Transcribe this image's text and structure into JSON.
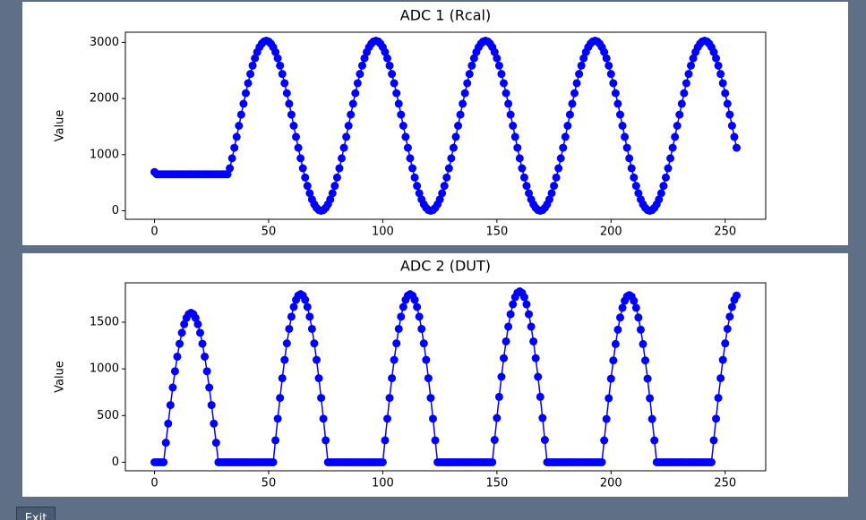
{
  "chart_data": [
    {
      "type": "line",
      "title": "ADC 1 (Rcal)",
      "ylabel": "Value",
      "color": "blue",
      "x": [
        0,
        1,
        2,
        3,
        4,
        5,
        6,
        7,
        8,
        9,
        10,
        11,
        12,
        13,
        14,
        15,
        16,
        17,
        18,
        19,
        20,
        21,
        22,
        23,
        24,
        25,
        26,
        27,
        28,
        29,
        30,
        31,
        32,
        33,
        34,
        35,
        36,
        37,
        38,
        39,
        40,
        41,
        42,
        43,
        44,
        45,
        46,
        47,
        48,
        49,
        50,
        51,
        52,
        53,
        54,
        55,
        56,
        57,
        58,
        59,
        60,
        61,
        62,
        63,
        64,
        65,
        66,
        67,
        68,
        69,
        70,
        71,
        72,
        73,
        74,
        75,
        76,
        77,
        78,
        79,
        80,
        81,
        82,
        83,
        84,
        85,
        86,
        87,
        88,
        89,
        90,
        91,
        92,
        93,
        94,
        95,
        96,
        97,
        98,
        99,
        100,
        101,
        102,
        103,
        104,
        105,
        106,
        107,
        108,
        109,
        110,
        111,
        112,
        113,
        114,
        115,
        116,
        117,
        118,
        119,
        120,
        121,
        122,
        123,
        124,
        125,
        126,
        127,
        128,
        129,
        130,
        131,
        132,
        133,
        134,
        135,
        136,
        137,
        138,
        139,
        140,
        141,
        142,
        143,
        144,
        145,
        146,
        147,
        148,
        149,
        150,
        151,
        152,
        153,
        154,
        155,
        156,
        157,
        158,
        159,
        160,
        161,
        162,
        163,
        164,
        165,
        166,
        167,
        168,
        169,
        170,
        171,
        172,
        173,
        174,
        175,
        176,
        177,
        178,
        179,
        180,
        181,
        182,
        183,
        184,
        185,
        186,
        187,
        188,
        189,
        190,
        191,
        192,
        193,
        194,
        195,
        196,
        197,
        198,
        199,
        200,
        201,
        202,
        203,
        204,
        205,
        206,
        207,
        208,
        209,
        210,
        211,
        212,
        213,
        214,
        215,
        216,
        217,
        218,
        219,
        220,
        221,
        222,
        223,
        224,
        225,
        226,
        227,
        228,
        229,
        230,
        231,
        232,
        233,
        234,
        235,
        236,
        237,
        238,
        239,
        240,
        241,
        242,
        243,
        244,
        245,
        246,
        247,
        248,
        249,
        250,
        251,
        252,
        253,
        254,
        255
      ],
      "values": [
        690,
        650,
        650,
        650,
        650,
        650,
        650,
        650,
        650,
        650,
        650,
        650,
        650,
        650,
        650,
        650,
        650,
        650,
        650,
        650,
        650,
        650,
        650,
        650,
        650,
        650,
        650,
        650,
        650,
        650,
        650,
        650,
        650,
        757,
        935,
        1123,
        1317,
        1515,
        1713,
        1907,
        2095,
        2273,
        2437,
        2586,
        2717,
        2827,
        2915,
        2978,
        3017,
        3030,
        3017,
        2978,
        2915,
        2827,
        2717,
        2586,
        2437,
        2273,
        2095,
        1907,
        1713,
        1515,
        1317,
        1123,
        935,
        757,
        593,
        444,
        313,
        203,
        115,
        52,
        13,
        0,
        13,
        52,
        115,
        203,
        313,
        444,
        593,
        757,
        935,
        1123,
        1317,
        1515,
        1713,
        1907,
        2095,
        2273,
        2437,
        2586,
        2717,
        2827,
        2915,
        2978,
        3017,
        3030,
        3017,
        2978,
        2915,
        2827,
        2717,
        2586,
        2437,
        2273,
        2095,
        1907,
        1713,
        1515,
        1317,
        1123,
        935,
        757,
        593,
        444,
        313,
        203,
        115,
        52,
        13,
        0,
        13,
        52,
        115,
        203,
        313,
        444,
        593,
        757,
        935,
        1123,
        1317,
        1515,
        1713,
        1907,
        2095,
        2273,
        2437,
        2586,
        2717,
        2827,
        2915,
        2978,
        3017,
        3030,
        3017,
        2978,
        2915,
        2827,
        2717,
        2586,
        2437,
        2273,
        2095,
        1907,
        1713,
        1515,
        1317,
        1123,
        935,
        757,
        593,
        444,
        313,
        203,
        115,
        52,
        13,
        0,
        13,
        52,
        115,
        203,
        313,
        444,
        593,
        757,
        935,
        1123,
        1317,
        1515,
        1713,
        1907,
        2095,
        2273,
        2437,
        2586,
        2717,
        2827,
        2915,
        2978,
        3017,
        3030,
        3017,
        2978,
        2915,
        2827,
        2717,
        2586,
        2437,
        2273,
        2095,
        1907,
        1713,
        1515,
        1317,
        1123,
        935,
        757,
        593,
        444,
        313,
        203,
        115,
        52,
        13,
        0,
        13,
        52,
        115,
        203,
        313,
        444,
        593,
        757,
        935,
        1123,
        1317,
        1515,
        1713,
        1907,
        2095,
        2273,
        2437,
        2586,
        2717,
        2827,
        2915,
        2978,
        3017,
        3030,
        3017,
        2978,
        2915,
        2827,
        2717,
        2586,
        2437,
        2273,
        2095,
        1907,
        1713,
        1515,
        1317,
        1123
      ],
      "xlim": [
        -12.75,
        267.75
      ],
      "xticks": [
        0,
        50,
        100,
        150,
        200,
        250
      ],
      "ylim": [
        -151.5,
        3181.5
      ],
      "yticks": [
        0,
        1000,
        2000,
        3000
      ]
    },
    {
      "type": "line",
      "title": "ADC 2 (DUT)",
      "ylabel": "Value",
      "color": "blue",
      "x": [
        0,
        1,
        2,
        3,
        4,
        5,
        6,
        7,
        8,
        9,
        10,
        11,
        12,
        13,
        14,
        15,
        16,
        17,
        18,
        19,
        20,
        21,
        22,
        23,
        24,
        25,
        26,
        27,
        28,
        29,
        30,
        31,
        32,
        33,
        34,
        35,
        36,
        37,
        38,
        39,
        40,
        41,
        42,
        43,
        44,
        45,
        46,
        47,
        48,
        49,
        50,
        51,
        52,
        53,
        54,
        55,
        56,
        57,
        58,
        59,
        60,
        61,
        62,
        63,
        64,
        65,
        66,
        67,
        68,
        69,
        70,
        71,
        72,
        73,
        74,
        75,
        76,
        77,
        78,
        79,
        80,
        81,
        82,
        83,
        84,
        85,
        86,
        87,
        88,
        89,
        90,
        91,
        92,
        93,
        94,
        95,
        96,
        97,
        98,
        99,
        100,
        101,
        102,
        103,
        104,
        105,
        106,
        107,
        108,
        109,
        110,
        111,
        112,
        113,
        114,
        115,
        116,
        117,
        118,
        119,
        120,
        121,
        122,
        123,
        124,
        125,
        126,
        127,
        128,
        129,
        130,
        131,
        132,
        133,
        134,
        135,
        136,
        137,
        138,
        139,
        140,
        141,
        142,
        143,
        144,
        145,
        146,
        147,
        148,
        149,
        150,
        151,
        152,
        153,
        154,
        155,
        156,
        157,
        158,
        159,
        160,
        161,
        162,
        163,
        164,
        165,
        166,
        167,
        168,
        169,
        170,
        171,
        172,
        173,
        174,
        175,
        176,
        177,
        178,
        179,
        180,
        181,
        182,
        183,
        184,
        185,
        186,
        187,
        188,
        189,
        190,
        191,
        192,
        193,
        194,
        195,
        196,
        197,
        198,
        199,
        200,
        201,
        202,
        203,
        204,
        205,
        206,
        207,
        208,
        209,
        210,
        211,
        212,
        213,
        214,
        215,
        216,
        217,
        218,
        219,
        220,
        221,
        222,
        223,
        224,
        225,
        226,
        227,
        228,
        229,
        230,
        231,
        232,
        233,
        234,
        235,
        236,
        237,
        238,
        239,
        240,
        241,
        242,
        243,
        244,
        245,
        246,
        247,
        248,
        249,
        250,
        251,
        252,
        253,
        254,
        255
      ],
      "values": [
        0,
        0,
        0,
        0,
        0,
        209,
        414,
        612,
        800,
        974,
        1131,
        1269,
        1386,
        1478,
        1545,
        1586,
        1600,
        1586,
        1545,
        1478,
        1386,
        1269,
        1131,
        974,
        800,
        612,
        414,
        209,
        0,
        0,
        0,
        0,
        0,
        0,
        0,
        0,
        0,
        0,
        0,
        0,
        0,
        0,
        0,
        0,
        0,
        0,
        0,
        0,
        0,
        0,
        0,
        0,
        0,
        235,
        466,
        689,
        900,
        1096,
        1273,
        1428,
        1559,
        1663,
        1739,
        1785,
        1800,
        1785,
        1739,
        1663,
        1559,
        1428,
        1273,
        1096,
        900,
        689,
        466,
        235,
        0,
        0,
        0,
        0,
        0,
        0,
        0,
        0,
        0,
        0,
        0,
        0,
        0,
        0,
        0,
        0,
        0,
        0,
        0,
        0,
        0,
        0,
        0,
        0,
        0,
        235,
        466,
        689,
        900,
        1096,
        1273,
        1428,
        1559,
        1663,
        1739,
        1785,
        1800,
        1785,
        1739,
        1663,
        1559,
        1428,
        1273,
        1096,
        900,
        689,
        466,
        235,
        0,
        0,
        0,
        0,
        0,
        0,
        0,
        0,
        0,
        0,
        0,
        0,
        0,
        0,
        0,
        0,
        0,
        0,
        0,
        0,
        0,
        0,
        0,
        0,
        0,
        239,
        474,
        700,
        915,
        1114,
        1294,
        1452,
        1585,
        1691,
        1768,
        1814,
        1830,
        1814,
        1768,
        1691,
        1585,
        1452,
        1294,
        1114,
        915,
        700,
        474,
        239,
        0,
        0,
        0,
        0,
        0,
        0,
        0,
        0,
        0,
        0,
        0,
        0,
        0,
        0,
        0,
        0,
        0,
        0,
        0,
        0,
        0,
        0,
        0,
        0,
        0,
        234,
        463,
        685,
        895,
        1090,
        1266,
        1420,
        1550,
        1654,
        1729,
        1775,
        1790,
        1775,
        1729,
        1654,
        1550,
        1420,
        1266,
        1090,
        895,
        685,
        463,
        234,
        0,
        0,
        0,
        0,
        0,
        0,
        0,
        0,
        0,
        0,
        0,
        0,
        0,
        0,
        0,
        0,
        0,
        0,
        0,
        0,
        0,
        0,
        0,
        0,
        0,
        235,
        466,
        689,
        900,
        1096,
        1273,
        1428,
        1559,
        1663,
        1739,
        1785
      ],
      "xlim": [
        -12.75,
        267.75
      ],
      "xticks": [
        0,
        50,
        100,
        150,
        200,
        250
      ],
      "ylim": [
        -91.5,
        1921.5
      ],
      "yticks": [
        0,
        500,
        1000,
        1500
      ]
    }
  ],
  "button": {
    "label": "Exit"
  }
}
